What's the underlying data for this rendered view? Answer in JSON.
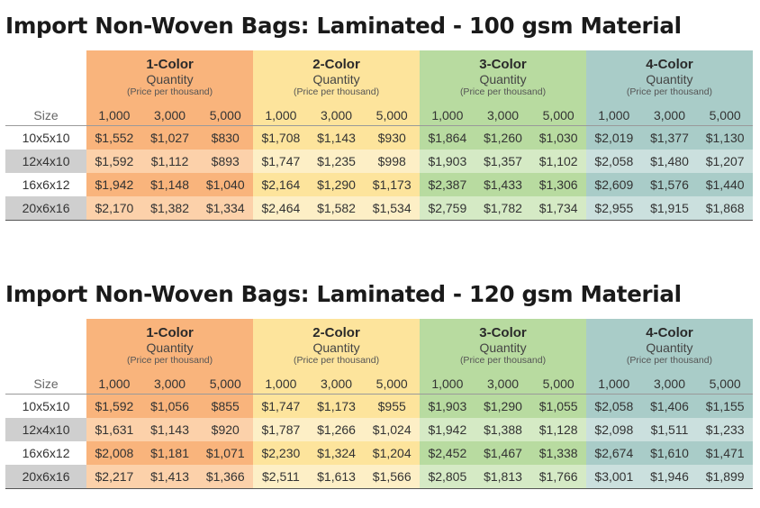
{
  "quantity_label": "Quantity",
  "price_note": "(Price per thousand)",
  "size_label": "Size",
  "quantities": [
    "1,000",
    "3,000",
    "5,000"
  ],
  "colors": [
    {
      "label": "1-Color",
      "hex": "#f9b47c",
      "light_hex": "#fcd1aa"
    },
    {
      "label": "2-Color",
      "hex": "#fde49c",
      "light_hex": "#fdefc6"
    },
    {
      "label": "3-Color",
      "hex": "#b8dba0",
      "light_hex": "#d5eac5"
    },
    {
      "label": "4-Color",
      "hex": "#a9ccc8",
      "light_hex": "#cbe0de"
    }
  ],
  "tables": [
    {
      "title": "Import Non-Woven Bags: Laminated - 100 gsm Material",
      "rows": [
        {
          "size": "10x5x10",
          "prices": [
            "$1,552",
            "$1,027",
            "$830",
            "$1,708",
            "$1,143",
            "$930",
            "$1,864",
            "$1,260",
            "$1,030",
            "$2,019",
            "$1,377",
            "$1,130"
          ]
        },
        {
          "size": "12x4x10",
          "prices": [
            "$1,592",
            "$1,112",
            "$893",
            "$1,747",
            "$1,235",
            "$998",
            "$1,903",
            "$1,357",
            "$1,102",
            "$2,058",
            "$1,480",
            "$1,207"
          ]
        },
        {
          "size": "16x6x12",
          "prices": [
            "$1,942",
            "$1,148",
            "$1,040",
            "$2,164",
            "$1,290",
            "$1,173",
            "$2,387",
            "$1,433",
            "$1,306",
            "$2,609",
            "$1,576",
            "$1,440"
          ]
        },
        {
          "size": "20x6x16",
          "prices": [
            "$2,170",
            "$1,382",
            "$1,334",
            "$2,464",
            "$1,582",
            "$1,534",
            "$2,759",
            "$1,782",
            "$1,734",
            "$2,955",
            "$1,915",
            "$1,868"
          ]
        }
      ]
    },
    {
      "title": "Import Non-Woven Bags: Laminated - 120 gsm Material",
      "rows": [
        {
          "size": "10x5x10",
          "prices": [
            "$1,592",
            "$1,056",
            "$855",
            "$1,747",
            "$1,173",
            "$955",
            "$1,903",
            "$1,290",
            "$1,055",
            "$2,058",
            "$1,406",
            "$1,155"
          ]
        },
        {
          "size": "12x4x10",
          "prices": [
            "$1,631",
            "$1,143",
            "$920",
            "$1,787",
            "$1,266",
            "$1,024",
            "$1,942",
            "$1,388",
            "$1,128",
            "$2,098",
            "$1,511",
            "$1,233"
          ]
        },
        {
          "size": "16x6x12",
          "prices": [
            "$2,008",
            "$1,181",
            "$1,071",
            "$2,230",
            "$1,324",
            "$1,204",
            "$2,452",
            "$1,467",
            "$1,338",
            "$2,674",
            "$1,610",
            "$1,471"
          ]
        },
        {
          "size": "20x6x16",
          "prices": [
            "$2,217",
            "$1,413",
            "$1,366",
            "$2,511",
            "$1,613",
            "$1,566",
            "$2,805",
            "$1,813",
            "$1,766",
            "$3,001",
            "$1,946",
            "$1,899"
          ]
        }
      ]
    }
  ]
}
